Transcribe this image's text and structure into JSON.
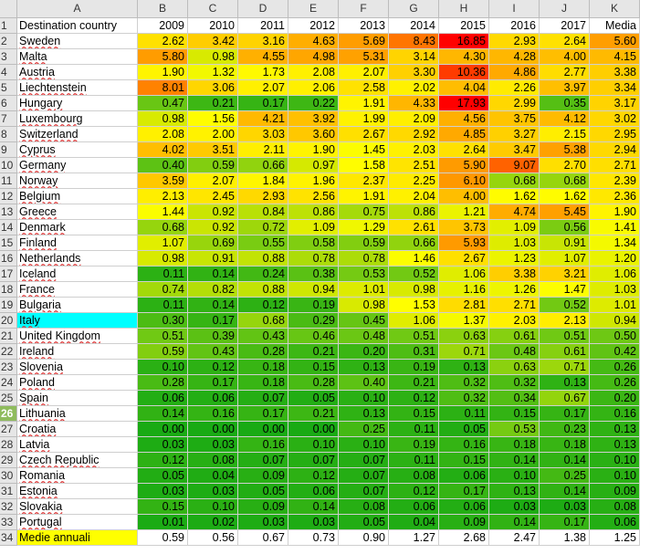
{
  "columns": [
    "A",
    "B",
    "C",
    "D",
    "E",
    "F",
    "G",
    "H",
    "I",
    "J",
    "K"
  ],
  "header_row": [
    "Destination country",
    "2009",
    "2010",
    "2011",
    "2012",
    "2013",
    "2014",
    "2015",
    "2016",
    "2017",
    "Media"
  ],
  "rows": [
    {
      "country": "Sweden",
      "values": [
        "2.62",
        "3.42",
        "3.16",
        "4.63",
        "5.69",
        "8.43",
        "16.85",
        "2.93",
        "2.64",
        "5.60"
      ]
    },
    {
      "country": "Malta",
      "values": [
        "5.80",
        "0.98",
        "4.55",
        "4.98",
        "5.31",
        "3.14",
        "4.30",
        "4.28",
        "4.00",
        "4.15"
      ]
    },
    {
      "country": "Austria",
      "values": [
        "1.90",
        "1.32",
        "1.73",
        "2.08",
        "2.07",
        "3.30",
        "10.36",
        "4.86",
        "2.77",
        "3.38"
      ]
    },
    {
      "country": "Liechtenstein",
      "values": [
        "8.01",
        "3.06",
        "2.07",
        "2.06",
        "2.58",
        "2.02",
        "4.04",
        "2.26",
        "3.97",
        "3.34"
      ]
    },
    {
      "country": "Hungary",
      "values": [
        "0.47",
        "0.21",
        "0.17",
        "0.22",
        "1.91",
        "4.33",
        "17.93",
        "2.99",
        "0.35",
        "3.17"
      ]
    },
    {
      "country": "Luxembourg",
      "values": [
        "0.98",
        "1.56",
        "4.21",
        "3.92",
        "1.99",
        "2.09",
        "4.56",
        "3.75",
        "4.12",
        "3.02"
      ]
    },
    {
      "country": "Switzerland",
      "values": [
        "2.08",
        "2.00",
        "3.03",
        "3.60",
        "2.67",
        "2.92",
        "4.85",
        "3.27",
        "2.15",
        "2.95"
      ]
    },
    {
      "country": "Cyprus",
      "values": [
        "4.02",
        "3.51",
        "2.11",
        "1.90",
        "1.45",
        "2.03",
        "2.64",
        "3.47",
        "5.38",
        "2.94"
      ]
    },
    {
      "country": "Germany",
      "values": [
        "0.40",
        "0.59",
        "0.66",
        "0.97",
        "1.58",
        "2.51",
        "5.90",
        "9.07",
        "2.70",
        "2.71"
      ]
    },
    {
      "country": "Norway",
      "values": [
        "3.59",
        "2.07",
        "1.84",
        "1.96",
        "2.37",
        "2.25",
        "6.10",
        "0.68",
        "0.68",
        "2.39"
      ]
    },
    {
      "country": "Belgium",
      "values": [
        "2.13",
        "2.45",
        "2.93",
        "2.56",
        "1.91",
        "2.04",
        "4.00",
        "1.62",
        "1.62",
        "2.36"
      ]
    },
    {
      "country": "Greece",
      "values": [
        "1.44",
        "0.92",
        "0.84",
        "0.86",
        "0.75",
        "0.86",
        "1.21",
        "4.74",
        "5.45",
        "1.90"
      ]
    },
    {
      "country": "Denmark",
      "values": [
        "0.68",
        "0.92",
        "0.72",
        "1.09",
        "1.29",
        "2.61",
        "3.73",
        "1.09",
        "0.56",
        "1.41"
      ]
    },
    {
      "country": "Finland",
      "values": [
        "1.07",
        "0.69",
        "0.55",
        "0.58",
        "0.59",
        "0.66",
        "5.93",
        "1.03",
        "0.91",
        "1.34"
      ]
    },
    {
      "country": "Netherlands",
      "values": [
        "0.98",
        "0.91",
        "0.88",
        "0.78",
        "0.78",
        "1.46",
        "2.67",
        "1.23",
        "1.07",
        "1.20"
      ]
    },
    {
      "country": "Iceland",
      "values": [
        "0.11",
        "0.14",
        "0.24",
        "0.38",
        "0.53",
        "0.52",
        "1.06",
        "3.38",
        "3.21",
        "1.06"
      ]
    },
    {
      "country": "France",
      "values": [
        "0.74",
        "0.82",
        "0.88",
        "0.94",
        "1.01",
        "0.98",
        "1.16",
        "1.26",
        "1.47",
        "1.03"
      ]
    },
    {
      "country": "Bulgaria",
      "values": [
        "0.11",
        "0.14",
        "0.12",
        "0.19",
        "0.98",
        "1.53",
        "2.81",
        "2.71",
        "0.52",
        "1.01"
      ]
    },
    {
      "country": "Italy",
      "values": [
        "0.30",
        "0.17",
        "0.68",
        "0.29",
        "0.45",
        "1.06",
        "1.37",
        "2.03",
        "2.13",
        "0.94"
      ]
    },
    {
      "country": "United Kingdom",
      "values": [
        "0.51",
        "0.39",
        "0.43",
        "0.46",
        "0.48",
        "0.51",
        "0.63",
        "0.61",
        "0.51",
        "0.50"
      ]
    },
    {
      "country": "Ireland",
      "values": [
        "0.59",
        "0.43",
        "0.28",
        "0.21",
        "0.20",
        "0.31",
        "0.71",
        "0.48",
        "0.61",
        "0.42"
      ]
    },
    {
      "country": "Slovenia",
      "values": [
        "0.10",
        "0.12",
        "0.18",
        "0.15",
        "0.13",
        "0.19",
        "0.13",
        "0.63",
        "0.71",
        "0.26"
      ]
    },
    {
      "country": "Poland",
      "values": [
        "0.28",
        "0.17",
        "0.18",
        "0.28",
        "0.40",
        "0.21",
        "0.32",
        "0.32",
        "0.13",
        "0.26"
      ]
    },
    {
      "country": "Spain",
      "values": [
        "0.06",
        "0.06",
        "0.07",
        "0.05",
        "0.10",
        "0.12",
        "0.32",
        "0.34",
        "0.67",
        "0.20"
      ]
    },
    {
      "country": "Lithuania",
      "values": [
        "0.14",
        "0.16",
        "0.17",
        "0.21",
        "0.13",
        "0.15",
        "0.11",
        "0.15",
        "0.17",
        "0.16"
      ]
    },
    {
      "country": "Croatia",
      "values": [
        "0.00",
        "0.00",
        "0.00",
        "0.00",
        "0.25",
        "0.11",
        "0.05",
        "0.53",
        "0.23",
        "0.13"
      ]
    },
    {
      "country": "Latvia",
      "values": [
        "0.03",
        "0.03",
        "0.16",
        "0.10",
        "0.10",
        "0.19",
        "0.16",
        "0.18",
        "0.18",
        "0.13"
      ]
    },
    {
      "country": "Czech Republic",
      "values": [
        "0.12",
        "0.08",
        "0.07",
        "0.07",
        "0.07",
        "0.11",
        "0.15",
        "0.14",
        "0.14",
        "0.10"
      ]
    },
    {
      "country": "Romania",
      "values": [
        "0.05",
        "0.04",
        "0.09",
        "0.12",
        "0.07",
        "0.08",
        "0.06",
        "0.10",
        "0.25",
        "0.10"
      ]
    },
    {
      "country": "Estonia",
      "values": [
        "0.03",
        "0.03",
        "0.05",
        "0.06",
        "0.07",
        "0.12",
        "0.17",
        "0.13",
        "0.14",
        "0.09"
      ]
    },
    {
      "country": "Slovakia",
      "values": [
        "0.15",
        "0.10",
        "0.09",
        "0.14",
        "0.08",
        "0.06",
        "0.06",
        "0.03",
        "0.03",
        "0.08"
      ]
    },
    {
      "country": "Portugal",
      "values": [
        "0.01",
        "0.02",
        "0.03",
        "0.03",
        "0.05",
        "0.04",
        "0.09",
        "0.14",
        "0.17",
        "0.06"
      ]
    }
  ],
  "footer_row": {
    "label": "Medie annuali",
    "values": [
      "0.59",
      "0.56",
      "0.67",
      "0.73",
      "0.90",
      "1.27",
      "2.68",
      "2.47",
      "1.38",
      "1.25"
    ]
  },
  "selected_row": "26",
  "highlight_colors": {
    "italy_cell": "#00ffff",
    "footer_label": "#ffff00"
  }
}
